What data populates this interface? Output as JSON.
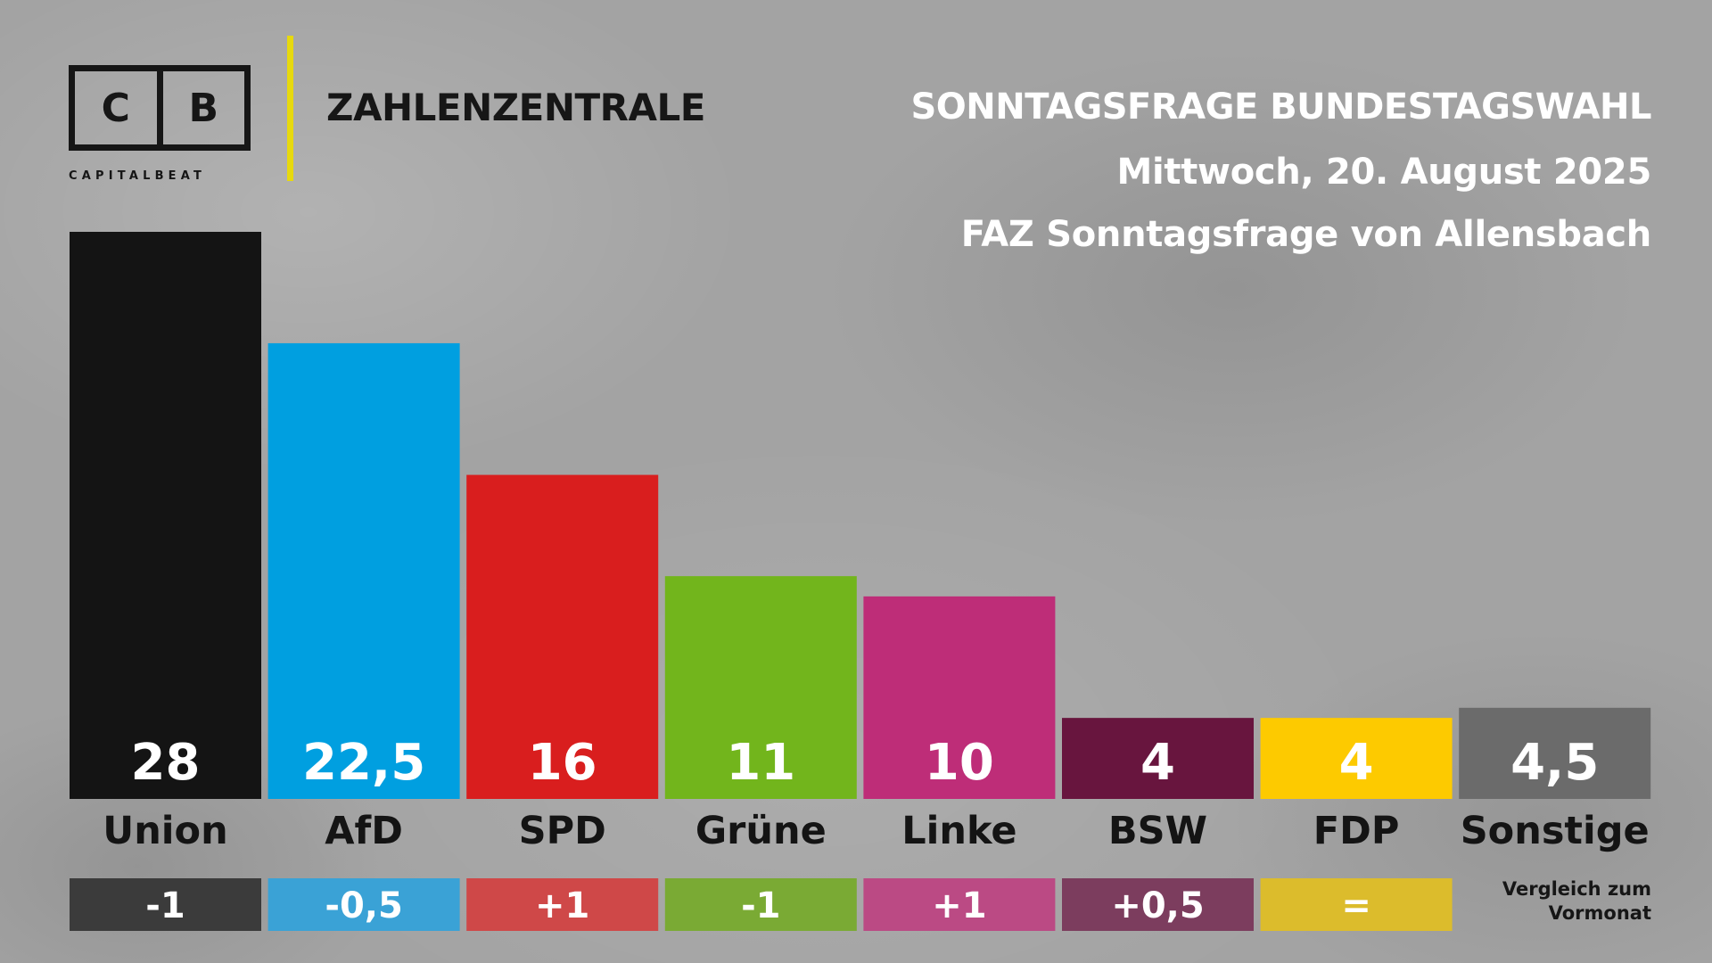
{
  "logo": {
    "letter_left": "C",
    "letter_right": "B",
    "wordmark": "CAPITALBEAT"
  },
  "brand": {
    "title": "ZAHLENZENTRALE",
    "accent_color": "#e7d90e"
  },
  "header": {
    "title": "SONNTAGSFRAGE BUNDESTAGSWAHL",
    "date": "Mittwoch, 20. August 2025",
    "source": "FAZ Sonntagsfrage von Allensbach"
  },
  "comparison_note": {
    "line1": "Vergleich zum",
    "line2": "Vormonat"
  },
  "chart_data": {
    "type": "bar",
    "title": "SONNTAGSFRAGE BUNDESTAGSWAHL",
    "categories": [
      "Union",
      "AfD",
      "SPD",
      "Grüne",
      "Linke",
      "BSW",
      "FDP",
      "Sonstige"
    ],
    "values": [
      28,
      22.5,
      16,
      11,
      10,
      4,
      4,
      4.5
    ],
    "value_labels": [
      "28",
      "22,5",
      "16",
      "11",
      "10",
      "4",
      "4",
      "4,5"
    ],
    "changes": [
      "-1",
      "-0,5",
      "+1",
      "-1",
      "+1",
      "+0,5",
      "=",
      null
    ],
    "colors": [
      "#141414",
      "#009fe0",
      "#d91e1e",
      "#72b51c",
      "#be2d78",
      "#68153e",
      "#fdca00",
      "#6b6b6b"
    ],
    "change_colors": [
      "#3b3b3b",
      "#3aa2d6",
      "#cf4848",
      "#7aaa34",
      "#bb4a84",
      "#7c3d5e",
      "#dcbc2c",
      null
    ],
    "ylim": [
      0,
      28
    ],
    "grid": false,
    "legend": "none"
  }
}
